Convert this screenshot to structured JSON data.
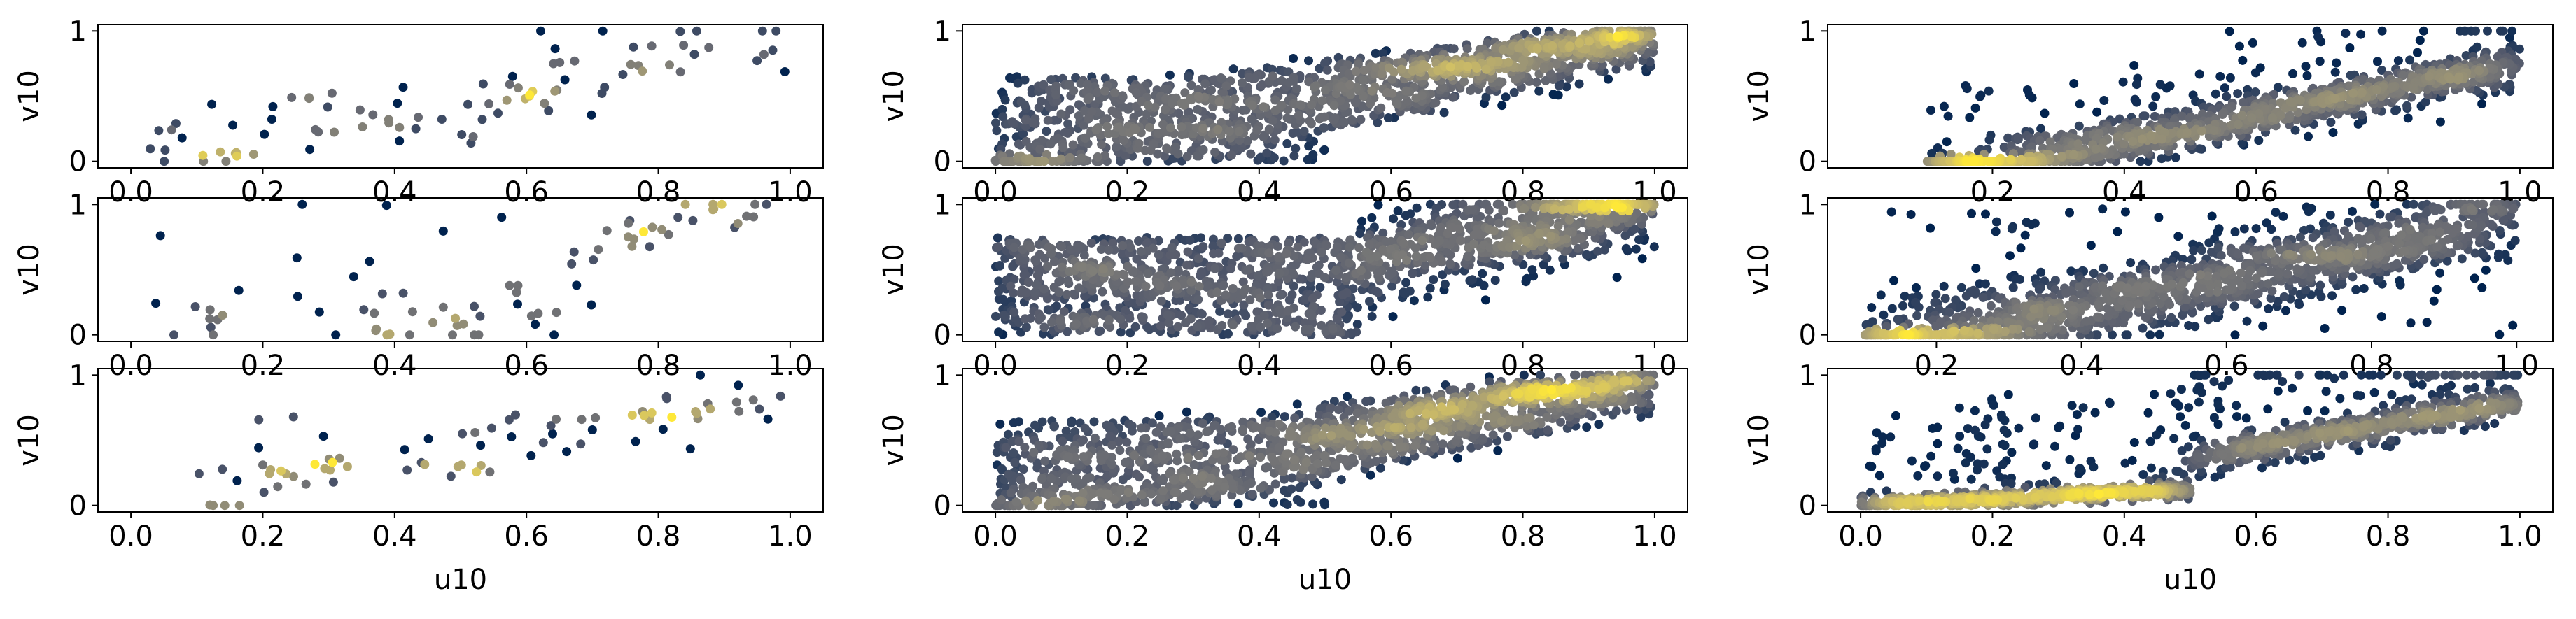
{
  "figure": {
    "background": "#ffffff",
    "colormap": [
      "#00224e",
      "#575c6d",
      "#7c7b78",
      "#a59c74",
      "#d3c164",
      "#fee838"
    ]
  },
  "chart_data": [
    {
      "type": "scatter",
      "row": 0,
      "col": 0,
      "n": 90,
      "seed": 101,
      "pattern": "sparse_diag",
      "xlabel": "",
      "ylabel": "v10",
      "xlim": [
        -0.05,
        1.05
      ],
      "ylim": [
        -0.05,
        1.05
      ],
      "xticks": [
        0.0,
        0.2,
        0.4,
        0.6,
        0.8,
        1.0
      ],
      "xtick_labels": [
        "0.0",
        "0.2",
        "0.4",
        "0.6",
        "0.8",
        "1.0"
      ],
      "yticks": [
        0,
        1
      ],
      "ytick_labels": [
        "0",
        "1"
      ],
      "color_by": "density"
    },
    {
      "type": "scatter",
      "row": 0,
      "col": 1,
      "n": 1400,
      "seed": 202,
      "pattern": "diag_upper",
      "xlabel": "",
      "ylabel": "v10",
      "xlim": [
        -0.05,
        1.05
      ],
      "ylim": [
        -0.05,
        1.05
      ],
      "xticks": [
        0.0,
        0.2,
        0.4,
        0.6,
        0.8,
        1.0
      ],
      "xtick_labels": [
        "0.0",
        "0.2",
        "0.4",
        "0.6",
        "0.8",
        "1.0"
      ],
      "yticks": [
        0,
        1
      ],
      "ytick_labels": [
        "0",
        "1"
      ],
      "color_by": "density"
    },
    {
      "type": "scatter",
      "row": 0,
      "col": 2,
      "n": 1100,
      "seed": 303,
      "pattern": "diag_lower",
      "xlabel": "",
      "ylabel": "v10",
      "xlim": [
        -0.05,
        1.05
      ],
      "ylim": [
        -0.05,
        1.05
      ],
      "xticks": [
        0.2,
        0.4,
        0.6,
        0.8,
        1.0
      ],
      "xtick_labels": [
        "0.2",
        "0.4",
        "0.6",
        "0.8",
        "1.0"
      ],
      "yticks": [
        0,
        1
      ],
      "ytick_labels": [
        "0",
        "1"
      ],
      "color_by": "density"
    },
    {
      "type": "scatter",
      "row": 1,
      "col": 0,
      "n": 80,
      "seed": 404,
      "pattern": "sparse_low",
      "xlabel": "",
      "ylabel": "v10",
      "xlim": [
        -0.05,
        1.05
      ],
      "ylim": [
        -0.05,
        1.05
      ],
      "xticks": [
        0.0,
        0.2,
        0.4,
        0.6,
        0.8,
        1.0
      ],
      "xtick_labels": [
        "0.0",
        "0.2",
        "0.4",
        "0.6",
        "0.8",
        "1.0"
      ],
      "yticks": [
        0,
        1
      ],
      "ytick_labels": [
        "0",
        "1"
      ],
      "color_by": "density"
    },
    {
      "type": "scatter",
      "row": 1,
      "col": 1,
      "n": 1500,
      "seed": 505,
      "pattern": "diag_upper_wide",
      "xlabel": "",
      "ylabel": "v10",
      "xlim": [
        -0.05,
        1.05
      ],
      "ylim": [
        -0.05,
        1.05
      ],
      "xticks": [
        0.0,
        0.2,
        0.4,
        0.6,
        0.8,
        1.0
      ],
      "xtick_labels": [
        "0.0",
        "0.2",
        "0.4",
        "0.6",
        "0.8",
        "1.0"
      ],
      "yticks": [
        0,
        1
      ],
      "ytick_labels": [
        "0",
        "1"
      ],
      "color_by": "density"
    },
    {
      "type": "scatter",
      "row": 1,
      "col": 2,
      "n": 1400,
      "seed": 606,
      "pattern": "diag_offset",
      "xlabel": "",
      "ylabel": "v10",
      "xlim": [
        0.05,
        1.05
      ],
      "ylim": [
        -0.05,
        1.05
      ],
      "xticks": [
        0.2,
        0.4,
        0.6,
        0.8,
        1.0
      ],
      "xtick_labels": [
        "0.2",
        "0.4",
        "0.6",
        "0.8",
        "1.0"
      ],
      "yticks": [
        0,
        1
      ],
      "ytick_labels": [
        "0",
        "1"
      ],
      "color_by": "density"
    },
    {
      "type": "scatter",
      "row": 2,
      "col": 0,
      "n": 80,
      "seed": 707,
      "pattern": "sparse_mid",
      "xlabel": "u10",
      "ylabel": "v10",
      "xlim": [
        -0.05,
        1.05
      ],
      "ylim": [
        -0.05,
        1.05
      ],
      "xticks": [
        0.0,
        0.2,
        0.4,
        0.6,
        0.8,
        1.0
      ],
      "xtick_labels": [
        "0.0",
        "0.2",
        "0.4",
        "0.6",
        "0.8",
        "1.0"
      ],
      "yticks": [
        0,
        1
      ],
      "ytick_labels": [
        "0",
        "1"
      ],
      "color_by": "density"
    },
    {
      "type": "scatter",
      "row": 2,
      "col": 1,
      "n": 1500,
      "seed": 808,
      "pattern": "diag_upper",
      "xlabel": "u10",
      "ylabel": "v10",
      "xlim": [
        -0.05,
        1.05
      ],
      "ylim": [
        -0.05,
        1.05
      ],
      "xticks": [
        0.0,
        0.2,
        0.4,
        0.6,
        0.8,
        1.0
      ],
      "xtick_labels": [
        "0.0",
        "0.2",
        "0.4",
        "0.6",
        "0.8",
        "1.0"
      ],
      "yticks": [
        0,
        1
      ],
      "ytick_labels": [
        "0",
        "1"
      ],
      "color_by": "density"
    },
    {
      "type": "scatter",
      "row": 2,
      "col": 2,
      "n": 1300,
      "seed": 909,
      "pattern": "diag_lower_scatter",
      "xlabel": "u10",
      "ylabel": "v10",
      "xlim": [
        -0.05,
        1.05
      ],
      "ylim": [
        -0.05,
        1.05
      ],
      "xticks": [
        0.0,
        0.2,
        0.4,
        0.6,
        0.8,
        1.0
      ],
      "xtick_labels": [
        "0.0",
        "0.2",
        "0.4",
        "0.6",
        "0.8",
        "1.0"
      ],
      "yticks": [
        0,
        1
      ],
      "ytick_labels": [
        "0",
        "1"
      ],
      "color_by": "density"
    }
  ]
}
